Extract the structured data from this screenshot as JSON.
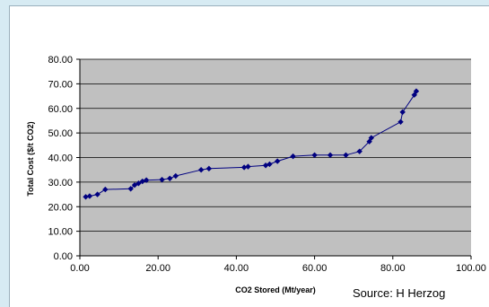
{
  "source_note": "Source: H Herzog",
  "colors": {
    "plot_bg": "#c0c0c0",
    "series": "#000080",
    "grid": "#000000",
    "page_bg": "#d7ebf3"
  },
  "chart_data": {
    "type": "line",
    "title": "",
    "xlabel": "CO2 Stored (Mt/year)",
    "ylabel": "Total Cost ($/t CO2)",
    "xlim": [
      0,
      100
    ],
    "ylim": [
      0,
      80
    ],
    "x_ticks": [
      "0.00",
      "20.00",
      "40.00",
      "60.00",
      "80.00",
      "100.00"
    ],
    "y_ticks": [
      "0.00",
      "10.00",
      "20.00",
      "30.00",
      "40.00",
      "50.00",
      "60.00",
      "70.00",
      "80.00"
    ],
    "grid": "horizontal",
    "marker": "diamond",
    "series": [
      {
        "x": [
          1.5,
          2.5,
          4.5,
          6.5,
          13.0,
          14.0,
          15.0,
          16.0,
          17.0,
          21.0,
          23.0,
          24.5,
          31.0,
          33.0,
          42.0,
          43.0,
          47.5,
          48.5,
          50.5,
          54.5,
          60.0,
          64.0,
          68.0,
          71.5,
          74.0,
          74.5,
          82.0,
          82.5,
          85.5,
          86.0
        ],
        "y": [
          24.0,
          24.3,
          25.0,
          27.0,
          27.3,
          28.8,
          29.5,
          30.3,
          30.8,
          31.0,
          31.5,
          32.5,
          35.0,
          35.5,
          36.0,
          36.3,
          36.8,
          37.3,
          38.5,
          40.5,
          41.0,
          41.0,
          41.0,
          42.5,
          46.5,
          48.0,
          54.5,
          58.5,
          65.5,
          67.0
        ]
      }
    ]
  }
}
